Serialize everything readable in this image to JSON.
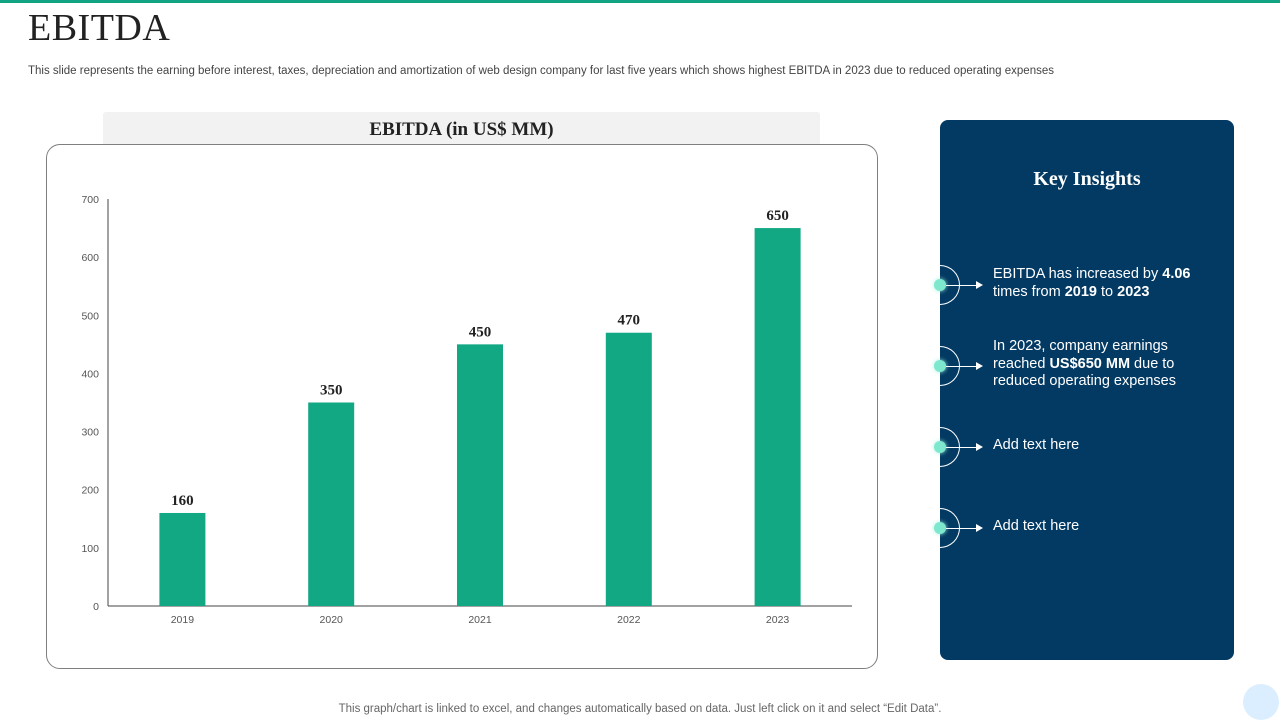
{
  "page": {
    "title": "EBITDA",
    "subtitle": "This slide represents the earning before interest, taxes, depreciation and amortization of web design company for last five  years which shows highest EBITDA in 2023 due to reduced operating expenses",
    "footer": "This graph/chart is linked to excel,  and changes automatically based on data. Just left click on it and select “Edit Data”."
  },
  "chart_data": {
    "type": "bar",
    "title": "EBITDA (in US$ MM)",
    "categories": [
      "2019",
      "2020",
      "2021",
      "2022",
      "2023"
    ],
    "values": [
      160,
      350,
      450,
      470,
      650
    ],
    "ylim": [
      0,
      700
    ],
    "yticks": [
      0,
      100,
      200,
      300,
      400,
      500,
      600,
      700
    ],
    "grid": false,
    "data_labels": true,
    "bar_color": "#12a883"
  },
  "insights": {
    "title": "Key Insights",
    "items": [
      {
        "parts": [
          {
            "text": "EBITDA has increased by ",
            "bold": false
          },
          {
            "text": "4.06",
            "bold": true
          },
          {
            "text": " times from ",
            "bold": false
          },
          {
            "text": "2019",
            "bold": true
          },
          {
            "text": " to ",
            "bold": false
          },
          {
            "text": "2023",
            "bold": true
          }
        ]
      },
      {
        "parts": [
          {
            "text": "In 2023, company earnings reached ",
            "bold": false
          },
          {
            "text": "US$650 MM",
            "bold": true
          },
          {
            "text": " due to reduced operating expenses",
            "bold": false
          }
        ]
      },
      {
        "parts": [
          {
            "text": "Add text here",
            "bold": false
          }
        ]
      },
      {
        "parts": [
          {
            "text": "Add text here",
            "bold": false
          }
        ]
      }
    ]
  },
  "colors": {
    "accent": "#12a383",
    "panel": "#033a63",
    "dot": "#7ee8cf"
  }
}
